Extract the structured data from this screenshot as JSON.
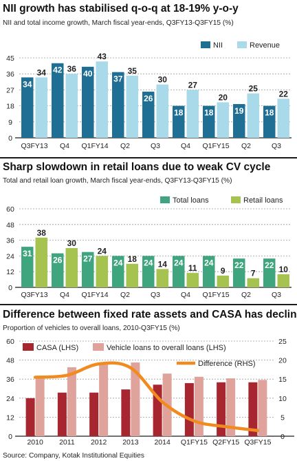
{
  "source": "Source: Company, Kotak Institutional Equities",
  "colors": {
    "nii": "#1f6f94",
    "revenue": "#a9daea",
    "total_loans": "#3fa57f",
    "retail_loans": "#a6c24f",
    "casa": "#a8262f",
    "vehicle_loans": "#dfa39b",
    "difference": "#f18a1f",
    "grid": "#9a9a9a",
    "label_dark": "#ffffff",
    "label_light": "#222222"
  },
  "chart_data": [
    {
      "type": "bar",
      "title": "NII growth has stabilised q-o-q at 18-19% y-o-y",
      "subtitle": "NII and total income growth, March fiscal year-ends, Q3FY13-Q3FY15 (%)",
      "categories": [
        "Q3FY13",
        "Q4",
        "Q1FY14",
        "Q2",
        "Q3",
        "Q4",
        "Q1FY15",
        "Q2",
        "Q3"
      ],
      "series": [
        {
          "name": "NII",
          "values": [
            34,
            42,
            40,
            37,
            26,
            18,
            18,
            19,
            18
          ]
        },
        {
          "name": "Revenue",
          "values": [
            34,
            36,
            43,
            35,
            30,
            27,
            20,
            25,
            22
          ]
        }
      ],
      "data_labels": [
        [
          "34",
          "42",
          "40",
          "37",
          "26",
          "18",
          "18",
          "19",
          "18"
        ],
        [
          "34",
          "36",
          "43",
          "35",
          "30",
          "27",
          "20",
          "25",
          "22"
        ]
      ],
      "ylim": [
        0,
        45
      ],
      "yticks": [
        0,
        9,
        18,
        27,
        36,
        45
      ],
      "legend": "top-right",
      "grid": true
    },
    {
      "type": "bar",
      "title": "Sharp slowdown in retail loans due to weak CV cycle",
      "subtitle": "Total and retail loan growth, March fiscal year-ends, Q3FY13-Q3FY15 (%)",
      "categories": [
        "Q3FY13",
        "Q4",
        "Q1FY14",
        "Q2",
        "Q3",
        "Q4",
        "Q1FY15",
        "Q2",
        "Q3"
      ],
      "series": [
        {
          "name": "Total loans",
          "values": [
            31,
            26,
            27,
            24,
            24,
            24,
            24,
            22,
            22
          ]
        },
        {
          "name": "Retail loans",
          "values": [
            38,
            30,
            24,
            18,
            14,
            11,
            9,
            7,
            10
          ]
        }
      ],
      "data_labels": [
        [
          "31",
          "26",
          "27",
          "24",
          "24",
          "24",
          "24",
          "22",
          "22"
        ],
        [
          "38",
          "30",
          "24",
          "18",
          "14",
          "11",
          "9",
          "7",
          "10"
        ]
      ],
      "ylim": [
        0,
        60
      ],
      "yticks": [
        0,
        12,
        24,
        36,
        48,
        60
      ],
      "legend": "top-right",
      "grid": true
    },
    {
      "type": "bar",
      "title": "Difference between fixed rate assets and CASA has declined",
      "subtitle": "Proportion of vehicles to overall loans, 2010-Q3FY15 (%)",
      "categories": [
        "2010",
        "2011",
        "2012",
        "2013",
        "2014",
        "Q1FY15",
        "Q2FY15",
        "Q3FY15"
      ],
      "series": [
        {
          "name": "CASA (LHS)",
          "axis": "left",
          "values": [
            24,
            27.5,
            27.5,
            29.5,
            32.5,
            33.5,
            34,
            34
          ]
        },
        {
          "name": "Vehicle loans to overall loans (LHS)",
          "axis": "left",
          "values": [
            36.5,
            43.5,
            45.5,
            46.5,
            39.5,
            37.5,
            36.5,
            35.5
          ]
        },
        {
          "name": "Difference (RHS)",
          "type": "line",
          "axis": "right",
          "values": [
            15.5,
            16,
            19,
            18,
            9,
            4,
            2.5,
            1.5
          ]
        }
      ],
      "ylim": [
        0,
        60
      ],
      "yticks": [
        0,
        12,
        24,
        36,
        48,
        60
      ],
      "y2lim": [
        0,
        25
      ],
      "y2ticks": [
        0,
        5,
        10,
        15,
        20,
        25
      ],
      "legend": "top",
      "grid": true
    }
  ]
}
